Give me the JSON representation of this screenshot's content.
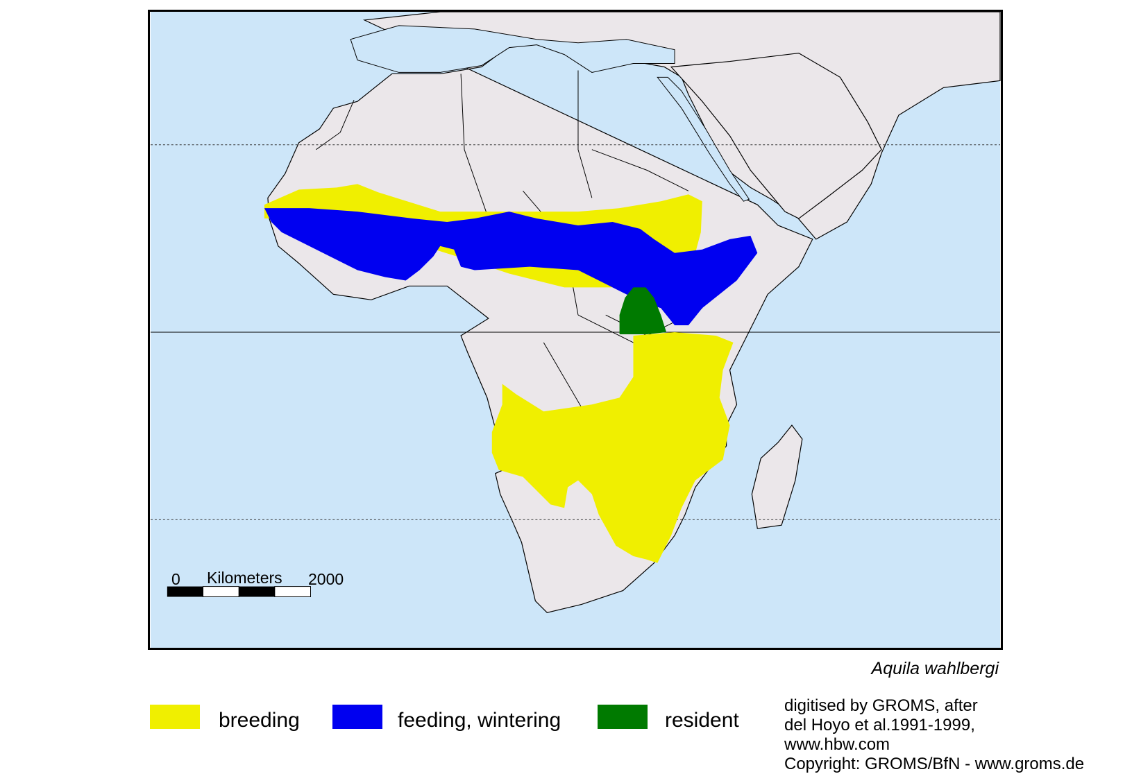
{
  "species_name": "Aquila wahlbergi",
  "scale_bar": {
    "start_label": "0",
    "unit_label": "Kilometers",
    "end_label": "2000"
  },
  "legend": [
    {
      "label": "breeding",
      "color": "#f0ef00"
    },
    {
      "label": "feeding, wintering",
      "color": "#0000f0"
    },
    {
      "label": "resident",
      "color": "#007a00"
    }
  ],
  "credits": [
    "digitised by GROMS, after",
    "del Hoyo et al.1991-1999,",
    "www.hbw.com",
    "Copyright: GROMS/BfN - www.groms.de"
  ],
  "colors": {
    "ocean": "#cde6f9",
    "land": "#ebe7ea",
    "border": "#000000"
  }
}
